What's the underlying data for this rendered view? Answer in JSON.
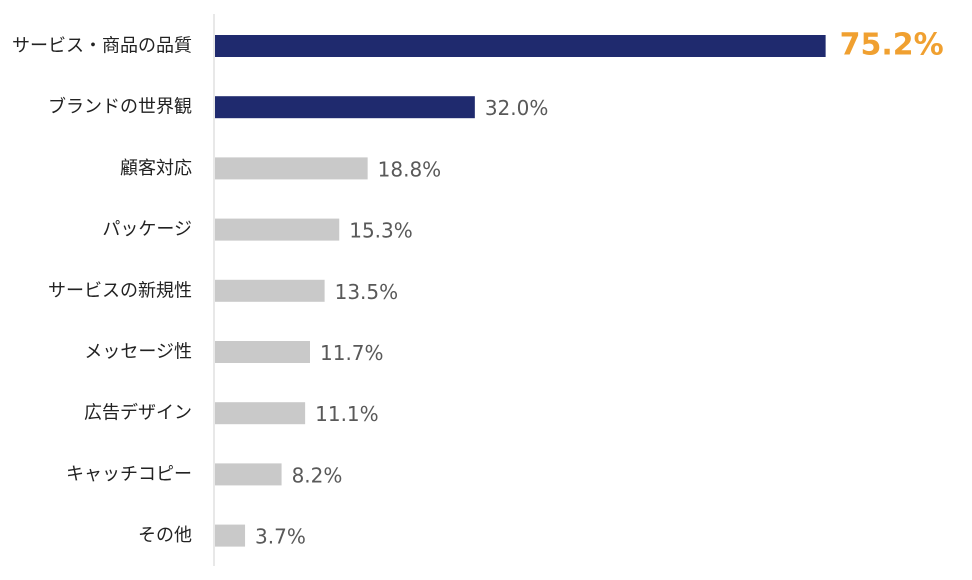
{
  "chart_data": {
    "type": "bar",
    "orientation": "horizontal",
    "categories": [
      "サービス・商品の品質",
      "ブランドの世界観",
      "顧客対応",
      "パッケージ",
      "サービスの新規性",
      "メッセージ性",
      "広告デザイン",
      "キャッチコピー",
      "その他"
    ],
    "values": [
      75.2,
      32.0,
      18.8,
      15.3,
      13.5,
      11.7,
      11.1,
      8.2,
      3.7
    ],
    "value_labels": [
      "75.2%",
      "32.0%",
      "18.8%",
      "15.3%",
      "13.5%",
      "11.7%",
      "11.1%",
      "8.2%",
      "3.7%"
    ],
    "xlim": [
      0,
      80
    ],
    "grid": false,
    "legend": "none",
    "highlight_count": 2,
    "colors": {
      "highlight_bar": "#1f2a6e",
      "default_bar": "#c9c9c9",
      "highlight_label": "#f0a030",
      "default_label": "#595959",
      "axis": "#d0d0d0",
      "category_text": "#222222"
    }
  }
}
